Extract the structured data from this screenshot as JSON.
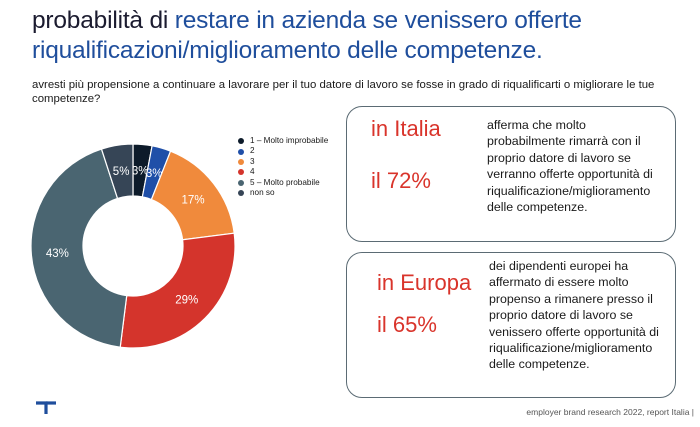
{
  "title": {
    "part1": "probabilità di ",
    "part2": "restare in azienda se venissero offerte",
    "line2": "riqualificazioni/miglioramento delle competenze."
  },
  "question": "avresti più propensione a continuare a lavorare per il tuo datore di lavoro se fosse in grado di riqualificarti o migliorare le tue competenze?",
  "colors": {
    "title_dark": "#1b1b2f",
    "title_blue": "#1f4e9c",
    "highlight_red": "#d9342b",
    "box_border": "#5b6b74"
  },
  "chart_data": {
    "type": "pie",
    "subtype": "donut",
    "legend_position": "top-right",
    "categories": [
      "1 – Molto improbabile",
      "2",
      "3",
      "4",
      "5 – Molto probabile",
      "non so"
    ],
    "values": [
      3,
      3,
      17,
      29,
      43,
      5
    ],
    "labels": [
      "3%",
      "3%",
      "17%",
      "29%",
      "43%",
      "5%"
    ],
    "colors": [
      "#0d1b2a",
      "#1f4fa8",
      "#f08a3c",
      "#d4342c",
      "#4a6571",
      "#364556"
    ]
  },
  "callouts": [
    {
      "region": "in Italia",
      "percent": "il 72%",
      "text_lines": [
        "afferma che molto",
        "probabilmente rimarrà con il",
        "proprio datore di lavoro se",
        "verranno offerte opportunità di",
        "riqualificazione/miglioramento",
        "delle competenze."
      ]
    },
    {
      "region": "in Europa",
      "percent": "il 65%",
      "text_lines": [
        "dei dipendenti europei ha",
        "affermato di essere molto",
        "propenso a rimanere presso il",
        "proprio datore di lavoro se",
        "venissero offerte opportunità di",
        "riqualificazione/miglioramento",
        "delle competenze."
      ]
    }
  ],
  "footer": "employer brand research 2022, report Italia  |",
  "logo_icon": "randstad-logo-icon"
}
